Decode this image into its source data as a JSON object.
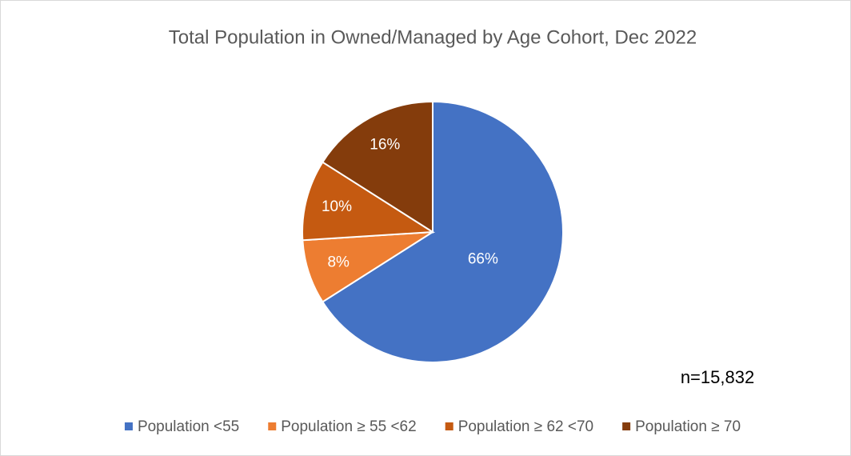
{
  "chart_data": {
    "type": "pie",
    "title": "Total Population in Owned/Managed by Age Cohort, Dec 2022",
    "categories": [
      "Population <55",
      "Population ≥ 55  <62",
      "Population ≥ 62  <70",
      "Population ≥ 70"
    ],
    "values": [
      66,
      8,
      10,
      16
    ],
    "value_labels": [
      "66%",
      "8%",
      "10%",
      "16%"
    ],
    "colors": [
      "#4472c4",
      "#ed7d31",
      "#c55a11",
      "#843c0c"
    ],
    "annotation": "n=15,832",
    "legend": "bottom"
  }
}
